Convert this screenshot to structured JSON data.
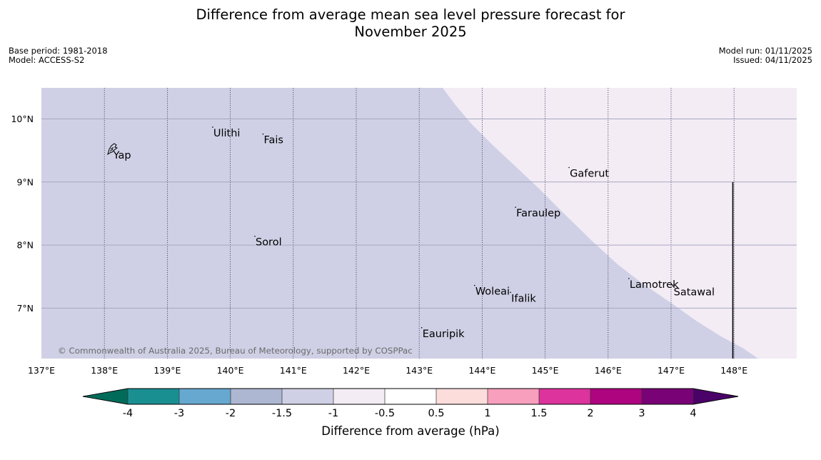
{
  "title": {
    "line1": "Difference from average mean sea level pressure forecast for",
    "line2": "November 2025"
  },
  "meta": {
    "base_period": "Base period: 1981-2018",
    "model": "Model: ACCESS-S2",
    "model_run": "Model run: 01/11/2025",
    "issued": "Issued: 04/11/2025"
  },
  "map": {
    "lon_range": [
      137,
      149
    ],
    "lat_range": [
      6.2,
      10.5
    ],
    "lon_ticks": [
      137,
      138,
      139,
      140,
      141,
      142,
      143,
      144,
      145,
      146,
      147,
      148
    ],
    "lon_labels": [
      "137°E",
      "138°E",
      "139°E",
      "140°E",
      "141°E",
      "142°E",
      "143°E",
      "144°E",
      "145°E",
      "146°E",
      "147°E",
      "148°E"
    ],
    "lat_ticks": [
      10,
      9,
      8,
      7
    ],
    "lat_labels": [
      "10°N",
      "9°N",
      "8°N",
      "7°N"
    ],
    "fill_colors": {
      "main": "#cfd0e5",
      "low": "#f3ecf5"
    },
    "places": [
      {
        "name": "Ulithi",
        "lon": 139.72,
        "lat": 9.87
      },
      {
        "name": "Fais",
        "lon": 140.52,
        "lat": 9.76
      },
      {
        "name": "Yap",
        "lon": 138.13,
        "lat": 9.52
      },
      {
        "name": "Gaferut",
        "lon": 145.38,
        "lat": 9.23
      },
      {
        "name": "Faraulep",
        "lon": 144.53,
        "lat": 8.6
      },
      {
        "name": "Sorol",
        "lon": 140.39,
        "lat": 8.14
      },
      {
        "name": "Lamotrek",
        "lon": 146.33,
        "lat": 7.47
      },
      {
        "name": "Woleai",
        "lon": 143.88,
        "lat": 7.36
      },
      {
        "name": "Ifalik",
        "lon": 144.45,
        "lat": 7.25
      },
      {
        "name": "Satawal",
        "lon": 147.03,
        "lat": 7.35
      },
      {
        "name": "Eauripik",
        "lon": 143.04,
        "lat": 6.69
      }
    ],
    "copyright": "© Commonwealth of Australia 2025, Bureau of Meteorology, supported by COSPPac"
  },
  "colorbar": {
    "labels": [
      "-4",
      "-3",
      "-2",
      "-1.5",
      "-1",
      "-0.5",
      "0.5",
      "1",
      "1.5",
      "2",
      "3",
      "4"
    ],
    "colors": [
      "#1a8f91",
      "#66a8cf",
      "#aeb7d2",
      "#cfd0e5",
      "#f3ecf5",
      "#ffffff",
      "#fddcdc",
      "#f79fbd",
      "#dc339c",
      "#ae047f",
      "#7a0277"
    ],
    "under_color": "#016b5a",
    "over_color": "#4a0168",
    "label": "Difference from average (hPa)"
  }
}
